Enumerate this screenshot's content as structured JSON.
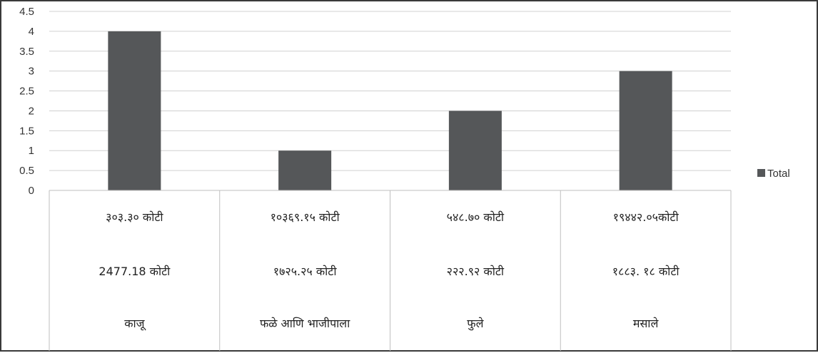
{
  "chart_data": {
    "type": "bar",
    "categories": [
      "काजू",
      "फळे आणि भाजीपाला",
      "फुले",
      "मसाले"
    ],
    "series": [
      {
        "name": "Total",
        "values": [
          4,
          1,
          2,
          3
        ],
        "color": "#555759"
      }
    ],
    "ylim": [
      0,
      4.5
    ],
    "y_ticks": [
      "0",
      "0.5",
      "1",
      "1.5",
      "2",
      "2.5",
      "3",
      "3.5",
      "4",
      "4.5"
    ],
    "grid": true,
    "legend_placement": "right",
    "category_table_rows": [
      [
        "३०३.३० कोटी",
        "१०३६९.१५ कोटी",
        "५४८.७० कोटी",
        "१९४४२.०५कोटी"
      ],
      [
        "2477.18 कोटी",
        "१७२५.२५  कोटी",
        "२२२.९२ कोटी",
        "१८८३. १८  कोटी"
      ],
      [
        "काजू",
        "फळे आणि भाजीपाला",
        "फुले",
        "मसाले"
      ]
    ]
  }
}
